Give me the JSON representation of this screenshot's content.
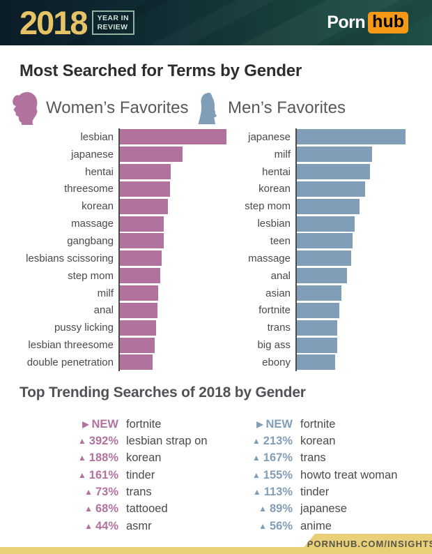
{
  "header": {
    "year": "2018",
    "tagline_line1": "YEAR IN",
    "tagline_line2": "REVIEW",
    "logo_part1": "Porn",
    "logo_part2": "hub"
  },
  "title": "Most Searched for Terms by Gender",
  "chart_data": [
    {
      "type": "bar",
      "title": "Women’s Favorites",
      "orientation": "horizontal",
      "color": "#b1739e",
      "categories": [
        "lesbian",
        "japanese",
        "hentai",
        "threesome",
        "korean",
        "massage",
        "gangbang",
        "lesbians scissoring",
        "step mom",
        "milf",
        "anal",
        "pussy licking",
        "lesbian threesome",
        "double penetration"
      ],
      "values": [
        100,
        59,
        48,
        47,
        45,
        41,
        41,
        39,
        38,
        36,
        35,
        34,
        33,
        31
      ],
      "value_note": "relative bar length, longest bar = 100 (no numeric labels shown in image)",
      "xlabel": "",
      "ylabel": "",
      "grid": false,
      "legend_position": "above-chart"
    },
    {
      "type": "bar",
      "title": "Men’s Favorites",
      "orientation": "horizontal",
      "color": "#809eb7",
      "categories": [
        "japanese",
        "milf",
        "hentai",
        "korean",
        "step mom",
        "lesbian",
        "teen",
        "massage",
        "anal",
        "asian",
        "fortnite",
        "trans",
        "big ass",
        "ebony"
      ],
      "values": [
        100,
        69,
        67,
        63,
        58,
        53,
        51,
        50,
        46,
        41,
        39,
        37,
        37,
        35
      ],
      "value_note": "relative bar length, longest bar = 100 (no numeric labels shown in image)",
      "xlabel": "",
      "ylabel": "",
      "grid": false,
      "legend_position": "above-chart"
    }
  ],
  "trending": {
    "title": "Top Trending Searches of 2018 by Gender",
    "women": [
      {
        "marker": "new",
        "change": "NEW",
        "term": "fortnite"
      },
      {
        "marker": "up",
        "change": "392%",
        "term": "lesbian strap on"
      },
      {
        "marker": "up",
        "change": "188%",
        "term": "korean"
      },
      {
        "marker": "up",
        "change": "161%",
        "term": "tinder"
      },
      {
        "marker": "up",
        "change": "73%",
        "term": "trans"
      },
      {
        "marker": "up",
        "change": "68%",
        "term": "tattooed"
      },
      {
        "marker": "up",
        "change": "44%",
        "term": "asmr"
      }
    ],
    "men": [
      {
        "marker": "new",
        "change": "NEW",
        "term": "fortnite"
      },
      {
        "marker": "up",
        "change": "213%",
        "term": "korean"
      },
      {
        "marker": "up",
        "change": "167%",
        "term": "trans"
      },
      {
        "marker": "up",
        "change": "155%",
        "term": "howto treat woman"
      },
      {
        "marker": "up",
        "change": "113%",
        "term": "tinder"
      },
      {
        "marker": "up",
        "change": "89%",
        "term": "japanese"
      },
      {
        "marker": "up",
        "change": "56%",
        "term": "anime"
      }
    ]
  },
  "footer": {
    "url": "PORNHUB.COM/INSIGHTS"
  }
}
